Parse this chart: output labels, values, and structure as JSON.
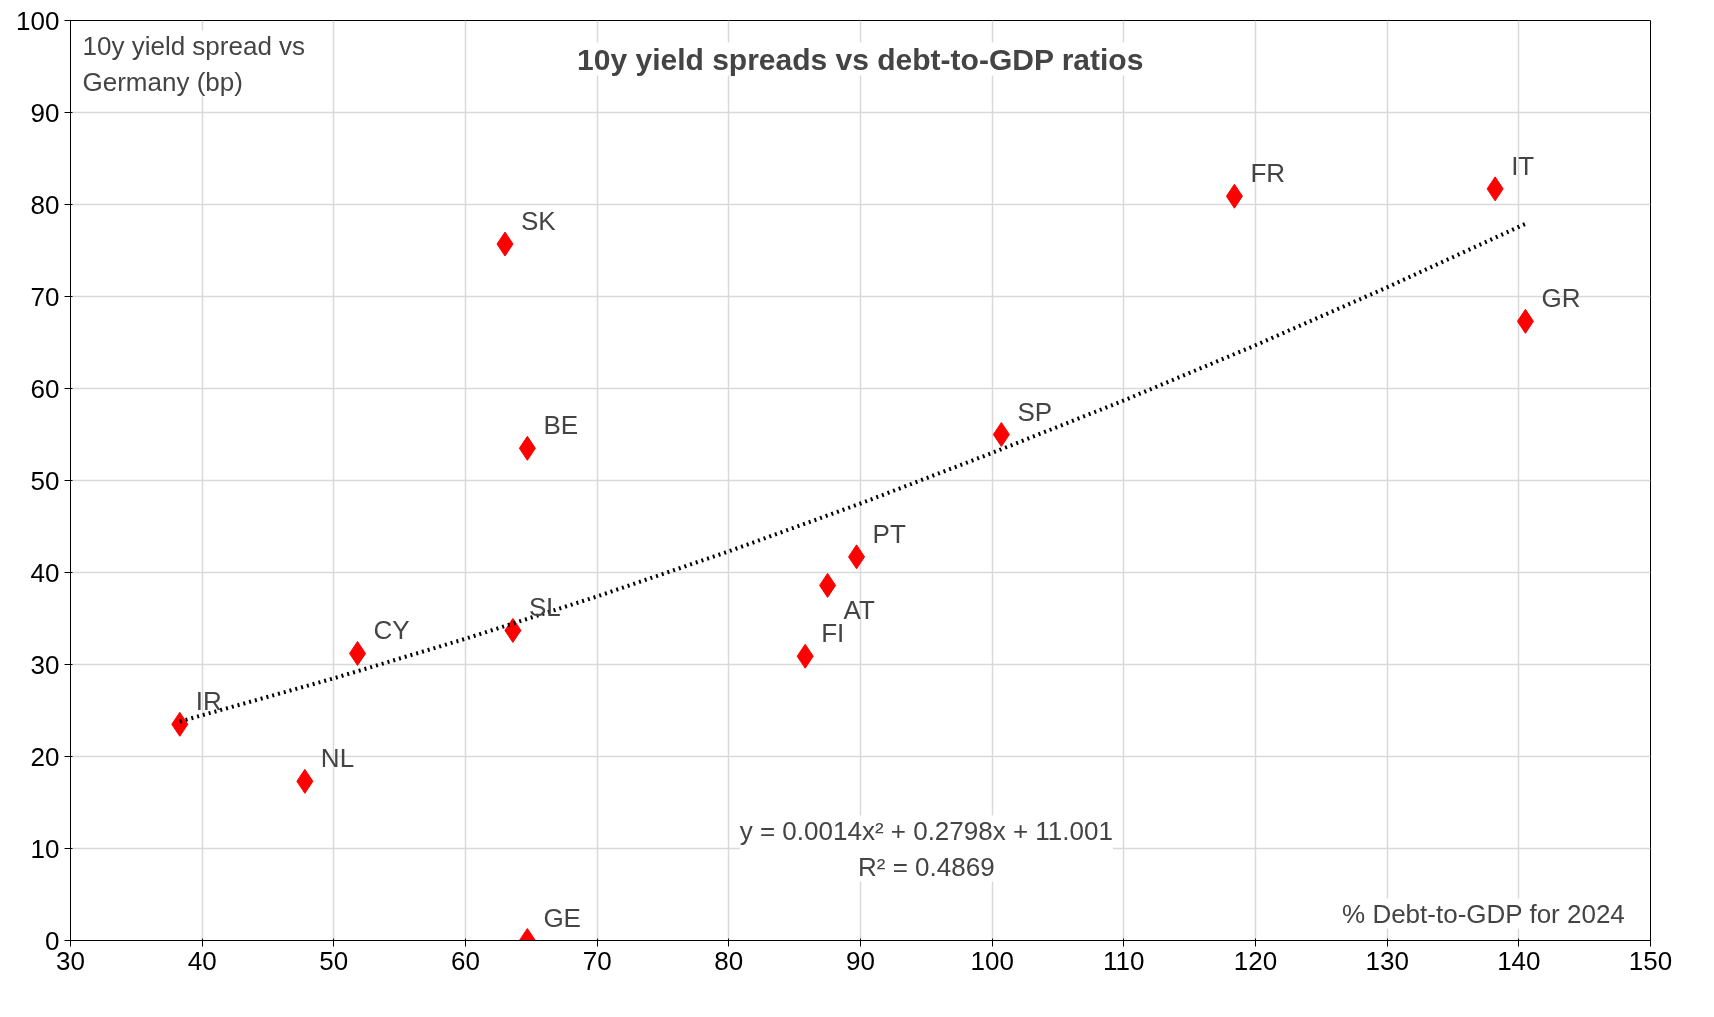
{
  "chart_data": {
    "type": "scatter",
    "title": "10y yield spreads vs debt-to-GDP ratios",
    "xlabel": "% Debt-to-GDP  for 2024",
    "ylabel": "10y yield spread vs Germany (bp)",
    "xlim": [
      30,
      150
    ],
    "xticks": [
      30,
      40,
      50,
      60,
      70,
      80,
      90,
      100,
      110,
      120,
      130,
      140,
      150
    ],
    "ylim": [
      0,
      100
    ],
    "yticks": [
      0,
      10,
      20,
      30,
      40,
      50,
      60,
      70,
      80,
      90,
      100
    ],
    "grid": true,
    "series": [
      {
        "color": "#ff0000",
        "marker": "diamond",
        "x": [
          38.3,
          47.8,
          51.8,
          63.6,
          64.7,
          63.0,
          64.7,
          85.8,
          87.5,
          89.7,
          100.7,
          118.4,
          138.2,
          140.5
        ],
        "values": [
          23.5,
          17.3,
          31.2,
          33.7,
          0,
          75.7,
          53.5,
          30.9,
          38.6,
          41.7,
          55.0,
          80.9,
          81.7,
          67.3
        ]
      },
      {
        "type": "line",
        "color": "#000000",
        "marker": "none",
        "line_style": "dotted",
        "x": [
          38.3,
          50,
          60,
          70,
          80,
          90,
          100,
          110,
          120,
          130,
          140.5
        ],
        "values": [
          23.8,
          28.5,
          32.8,
          37.4,
          42.3,
          47.5,
          53.0,
          58.7,
          64.7,
          71.0,
          77.9
        ]
      }
    ],
    "annotations": [
      {
        "text": "IR",
        "x": 38.3,
        "y": 23.5
      },
      {
        "text": "NL",
        "x": 47.8,
        "y": 17.3
      },
      {
        "text": "CY",
        "x": 51.8,
        "y": 31.2
      },
      {
        "text": "SL",
        "x": 63.6,
        "y": 33.7
      },
      {
        "text": "GE",
        "x": 64.7,
        "y": 0
      },
      {
        "text": "SK",
        "x": 63.0,
        "y": 75.7
      },
      {
        "text": "BE",
        "x": 64.7,
        "y": 53.5
      },
      {
        "text": "FI",
        "x": 85.8,
        "y": 30.9
      },
      {
        "text": "AT",
        "x": 87.5,
        "y": 38.6
      },
      {
        "text": "PT",
        "x": 89.7,
        "y": 41.7
      },
      {
        "text": "SP",
        "x": 100.7,
        "y": 55.0
      },
      {
        "text": "FR",
        "x": 118.4,
        "y": 80.9
      },
      {
        "text": "IT",
        "x": 138.2,
        "y": 81.7
      },
      {
        "text": "GR",
        "x": 140.5,
        "y": 67.3
      },
      "y = 0.0014x² + 0.2798x + 11.001",
      "R² = 0.4869"
    ]
  }
}
